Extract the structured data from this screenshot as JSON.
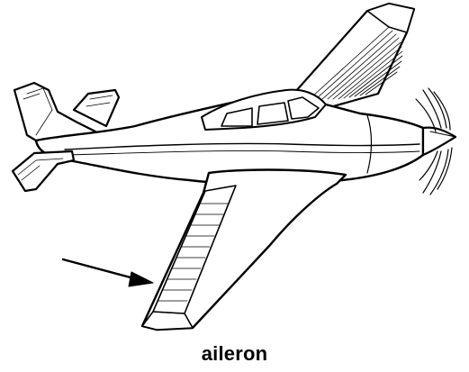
{
  "caption": "aileron",
  "stroke_color": "#000000",
  "fill_color": "#ffffff"
}
